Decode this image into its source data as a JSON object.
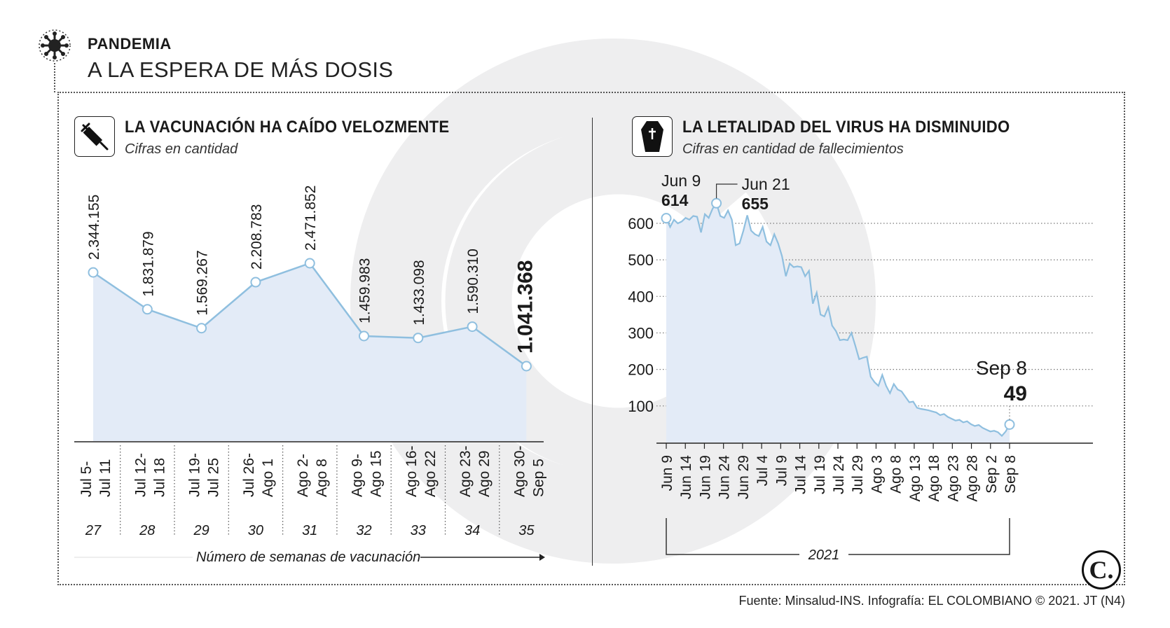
{
  "header": {
    "kicker": "PANDEMIA",
    "headline": "A LA ESPERA DE MÁS DOSIS"
  },
  "left_panel": {
    "title": "LA VACUNACIÓN HA CAÍDO VELOZMENTE",
    "subtitle": "Cifras en cantidad",
    "axis_note": "Número de semanas de vacunación"
  },
  "right_panel": {
    "title": "LA LETALIDAD DEL VIRUS HA DISMINUIDO",
    "subtitle": "Cifras en cantidad de fallecimientos",
    "year_label": "2021",
    "annotations": [
      {
        "date": "Jun 9",
        "value": "614"
      },
      {
        "date": "Jun 21",
        "value": "655"
      },
      {
        "date": "Sep 8",
        "value": "49"
      }
    ]
  },
  "footer": {
    "source": "Fuente: Minsalud-INS. Infografía: EL COLOMBIANO © 2021. JT (N4)",
    "logo": "C."
  },
  "icons": {
    "kicker": "virus-icon",
    "left": "syringe-icon",
    "right": "coffin-icon"
  },
  "colors": {
    "line": "#8fbfdf",
    "fill": "#e3ebf7",
    "watermark": "#eeeeef",
    "text": "#1a1a1a"
  },
  "chart_data": [
    {
      "type": "area",
      "categories": [
        [
          "Jul 5-",
          "Jul 11"
        ],
        [
          "Jul 12-",
          "Jul 18"
        ],
        [
          "Jul 19-",
          "Jul 25"
        ],
        [
          "Jul 26-",
          "Ago 1"
        ],
        [
          "Ago 2-",
          "Ago 8"
        ],
        [
          "Ago 9-",
          "Ago 15"
        ],
        [
          "Ago 16-",
          "Ago 22"
        ],
        [
          "Ago 23-",
          "Ago 29"
        ],
        [
          "Ago 30-",
          "Sep 5"
        ]
      ],
      "weeks": [
        "27",
        "28",
        "29",
        "30",
        "31",
        "32",
        "33",
        "34",
        "35"
      ],
      "values": [
        2344155,
        1831879,
        1569267,
        2208783,
        2471852,
        1459983,
        1433098,
        1590310,
        1041368
      ],
      "value_labels": [
        "2.344.155",
        "1.831.879",
        "1.569.267",
        "2.208.783",
        "2.471.852",
        "1.459.983",
        "1.433.098",
        "1.590.310",
        "1.041.368"
      ],
      "title": "LA VACUNACIÓN HA CAÍDO VELOZMENTE",
      "xlabel": "Número de semanas de vacunación",
      "ylabel": ""
    },
    {
      "type": "area",
      "x_tick_labels": [
        "Jun 9",
        "Jun 14",
        "Jun 19",
        "Jun 24",
        "Jun 29",
        "Jul 4",
        "Jul 9",
        "Jul 14",
        "Jul 19",
        "Jul 24",
        "Jul 29",
        "Ago 3",
        "Ago 8",
        "Ago 13",
        "Ago 18",
        "Ago 23",
        "Ago 28",
        "Sep 2",
        "Sep 8"
      ],
      "y_ticks": [
        100,
        200,
        300,
        400,
        500,
        600
      ],
      "ylim": [
        0,
        680
      ],
      "x_start": "Jun 9",
      "x_end": "Sep 8",
      "grid": "horizontal dotted",
      "title": "LA LETALIDAD DEL VIRUS HA DISMINUIDO",
      "xlabel": "2021",
      "values": [
        614,
        590,
        610,
        600,
        605,
        615,
        610,
        620,
        618,
        575,
        625,
        615,
        640,
        655,
        620,
        615,
        635,
        610,
        540,
        545,
        580,
        622,
        580,
        570,
        565,
        590,
        550,
        540,
        570,
        545,
        510,
        455,
        490,
        480,
        482,
        480,
        455,
        470,
        380,
        410,
        350,
        345,
        370,
        320,
        305,
        280,
        282,
        280,
        300,
        265,
        228,
        232,
        235,
        180,
        165,
        155,
        185,
        155,
        135,
        160,
        145,
        140,
        125,
        110,
        112,
        95,
        92,
        90,
        88,
        85,
        82,
        75,
        78,
        70,
        65,
        60,
        62,
        55,
        58,
        50,
        45,
        48,
        40,
        35,
        30,
        32,
        28,
        18,
        30,
        49
      ]
    }
  ]
}
